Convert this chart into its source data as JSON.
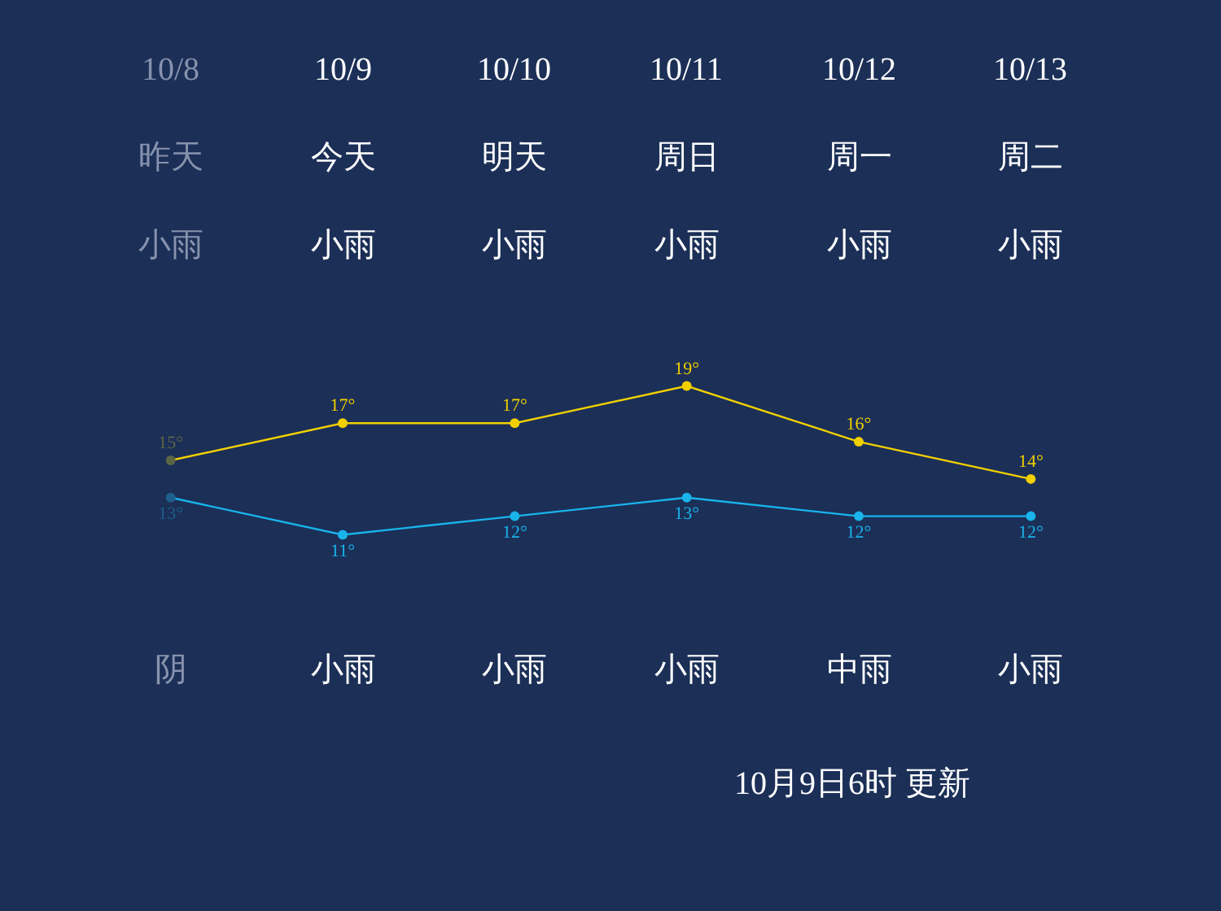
{
  "chart_data": {
    "type": "line",
    "categories": [
      "10/8",
      "10/9",
      "10/10",
      "10/11",
      "10/12",
      "10/13"
    ],
    "series": [
      {
        "color": "#f2d000",
        "colors": [
          "#5c6546",
          "#f2d000",
          "#f2d000",
          "#f2d000",
          "#f2d000",
          "#f2d000"
        ],
        "values": [
          15,
          17,
          17,
          19,
          16,
          14
        ],
        "value_labels": [
          "15°",
          "17°",
          "17°",
          "19°",
          "16°",
          "14°"
        ]
      },
      {
        "color": "#19b4ea",
        "colors": [
          "#1f5f8c",
          "#19b4ea",
          "#19b4ea",
          "#19b4ea",
          "#19b4ea",
          "#19b4ea"
        ],
        "values": [
          13,
          11,
          12,
          13,
          12,
          12
        ],
        "value_labels": [
          "13°",
          "11°",
          "12°",
          "13°",
          "12°",
          "12°"
        ]
      }
    ],
    "marker": "circle",
    "line_style": "solid",
    "annotations": [
      "昨天",
      "今天",
      "明天",
      "周日",
      "周一",
      "周二",
      "小雨",
      "小雨",
      "小雨",
      "小雨",
      "小雨",
      "小雨",
      "阴",
      "小雨",
      "小雨",
      "小雨",
      "中雨",
      "小雨",
      "10月9日6时 更新"
    ]
  }
}
